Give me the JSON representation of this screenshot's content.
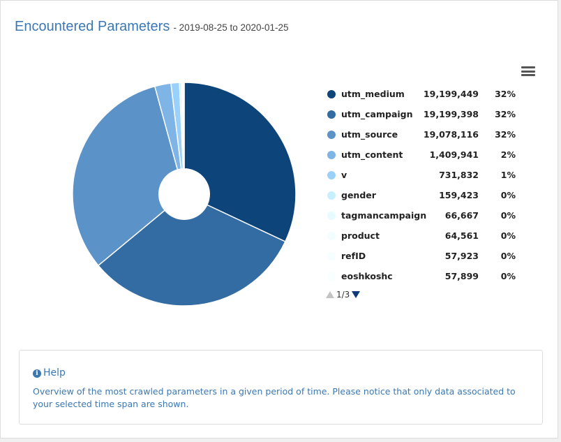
{
  "header": {
    "title": "Encountered Parameters",
    "subtitle": "- 2019-08-25 to 2020-01-25"
  },
  "chart_data": {
    "type": "pie",
    "categories": [
      "utm_medium",
      "utm_campaign",
      "utm_source",
      "utm_content",
      "v",
      "gender",
      "tagmancampaign",
      "product",
      "refID",
      "eoshkoshc"
    ],
    "values": [
      19199449,
      19199398,
      19078116,
      1409941,
      731832,
      159423,
      66667,
      64561,
      57923,
      57899
    ],
    "value_labels": [
      "19,199,449",
      "19,199,398",
      "19,078,116",
      "1,409,941",
      "731,832",
      "159,423",
      "66,667",
      "64,561",
      "57,923",
      "57,899"
    ],
    "percent_labels": [
      "32%",
      "32%",
      "32%",
      "2%",
      "1%",
      "0%",
      "0%",
      "0%",
      "0%",
      "0%"
    ],
    "colors": [
      "#0d447a",
      "#336ca3",
      "#5b93c8",
      "#7fb4e6",
      "#9ad1fa",
      "#c6f0fd",
      "#e7fbff",
      "#f2fdff",
      "#f6feff",
      "#f8ffff"
    ],
    "legend": "right",
    "donut_hole": true
  },
  "legend_pager": {
    "label": "1/3"
  },
  "help": {
    "title": "Help",
    "icon": "info-icon",
    "text": "Overview of the most crawled parameters in a given period of time. Please notice that only data associated to your selected time span are shown."
  }
}
